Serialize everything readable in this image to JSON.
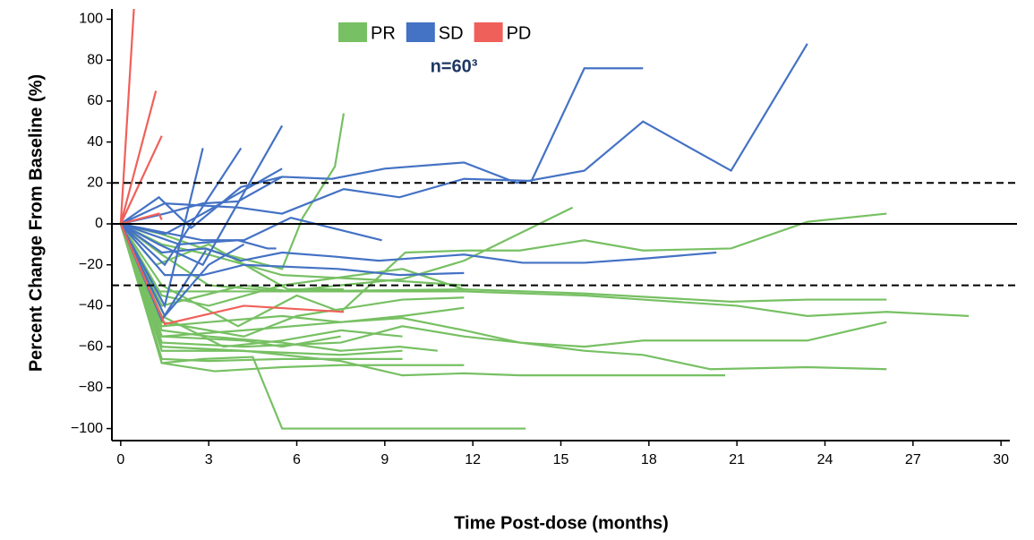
{
  "chart_data": {
    "type": "spider",
    "xlabel": "Time Post-dose (months)",
    "ylabel": "Percent Change From Baseline (%)",
    "annotation": "n=60³",
    "legend": "top-center",
    "xlim": [
      -0.3,
      30.3
    ],
    "xticks": [
      0,
      3,
      6,
      9,
      12,
      15,
      18,
      21,
      24,
      27,
      30
    ],
    "ylim": [
      -105,
      105
    ],
    "yticks": [
      {
        "value": -100,
        "label": "−100"
      },
      {
        "value": -80,
        "label": "−80"
      },
      {
        "value": -60,
        "label": "−60"
      },
      {
        "value": -40,
        "label": "−40"
      },
      {
        "value": -20,
        "label": "−20"
      },
      0,
      20,
      40,
      60,
      80,
      100
    ],
    "hlines": [
      {
        "value": 20,
        "style": "dashed"
      },
      {
        "value": 0,
        "style": "solid"
      },
      {
        "value": -30,
        "style": "dashed"
      }
    ],
    "series": [
      {
        "name": "PR",
        "color": "#77c063",
        "lines": [
          {
            "x": [
              0,
              1.4,
              2.8,
              5.5,
              6.2,
              7.3,
              7.6
            ],
            "values": [
              0,
              -5,
              -12,
              -22,
              3,
              28,
              54
            ]
          },
          {
            "x": [
              0,
              1.4,
              2.8,
              4.5,
              5.5,
              7.6,
              13.8
            ],
            "values": [
              0,
              -68,
              -66,
              -65,
              -100,
              -100,
              -100
            ]
          },
          {
            "x": [
              0,
              1.4,
              3,
              5.5,
              7.5,
              9.6,
              11.7,
              15.4
            ],
            "values": [
              0,
              -15,
              -30,
              -33,
              -30,
              -27,
              -18,
              8
            ]
          },
          {
            "x": [
              0,
              1.4,
              4,
              6,
              7.5,
              9.7,
              11.8,
              13.6,
              15.8,
              17.8,
              20.8,
              23.4,
              26.1
            ],
            "values": [
              0,
              -30,
              -50,
              -35,
              -43,
              -14,
              -13,
              -13,
              -8,
              -13,
              -12,
              1,
              5
            ]
          },
          {
            "x": [
              0,
              1.3,
              4.2,
              7.5,
              11.7,
              15.8,
              17.8,
              21,
              23.4,
              26.1,
              28.9
            ],
            "values": [
              0,
              -33,
              -33,
              -33,
              -33,
              -35,
              -37,
              -40,
              -45,
              -43,
              -45
            ]
          },
          {
            "x": [
              0,
              1.4,
              4.2,
              5.8,
              11.7,
              15.8,
              20.8,
              23.4,
              26.1
            ],
            "values": [
              0,
              -40,
              -30,
              -33,
              -32,
              -34,
              -38,
              -37,
              -37
            ]
          },
          {
            "x": [
              0,
              1.4,
              4.2,
              7.5,
              9.6,
              11.7,
              13.6,
              15.8,
              17.8,
              20.8,
              23.4,
              26.1
            ],
            "values": [
              0,
              -55,
              -52,
              -48,
              -46,
              -52,
              -58,
              -60,
              -57,
              -57,
              -57,
              -48
            ]
          },
          {
            "x": [
              0,
              1.4,
              4.2,
              7.5,
              9.6,
              11.7,
              13.6,
              15.8,
              17.8,
              20.1,
              23.4,
              26.1
            ],
            "values": [
              0,
              -58,
              -60,
              -58,
              -50,
              -55,
              -58,
              -62,
              -64,
              -71,
              -70,
              -71
            ]
          },
          {
            "x": [
              0,
              1.4,
              4.2,
              7.5,
              9.6,
              11.7,
              13.6,
              17.8,
              20.6
            ],
            "values": [
              0,
              -60,
              -62,
              -67,
              -74,
              -73,
              -74,
              -74,
              -74
            ]
          },
          {
            "x": [
              0,
              1.4,
              3.2,
              5.5,
              7.5,
              9.6,
              11.7
            ],
            "values": [
              0,
              -68,
              -72,
              -70,
              -69,
              -69,
              -69
            ]
          },
          {
            "x": [
              0,
              1.4,
              3,
              5.5,
              9.6
            ],
            "values": [
              0,
              -66,
              -67,
              -66,
              -66
            ]
          },
          {
            "x": [
              0,
              1.4,
              3,
              5.5,
              7.5,
              9.5,
              10.8
            ],
            "values": [
              0,
              -52,
              -55,
              -58,
              -62,
              -60,
              -62
            ]
          },
          {
            "x": [
              0,
              1.4,
              3,
              5.5,
              7.5,
              9.6,
              11.7
            ],
            "values": [
              0,
              -50,
              -48,
              -45,
              -48,
              -45,
              -41
            ]
          },
          {
            "x": [
              0,
              1.4,
              3.5,
              5.5,
              7.5,
              9.6
            ],
            "values": [
              0,
              -45,
              -60,
              -57,
              -52,
              -55
            ]
          },
          {
            "x": [
              0,
              1.4,
              4,
              7.5,
              9.6
            ],
            "values": [
              0,
              -62,
              -62,
              -64,
              -62
            ]
          },
          {
            "x": [
              0,
              1.4,
              3,
              5.5,
              9.6,
              11.7
            ],
            "values": [
              0,
              -35,
              -40,
              -30,
              -22,
              -32
            ]
          },
          {
            "x": [
              0,
              1.4,
              3,
              5.5,
              9.6,
              11.7
            ],
            "values": [
              0,
              -10,
              -15,
              -25,
              -28,
              -30
            ]
          },
          {
            "x": [
              0,
              1.2,
              3,
              5.7,
              7.6
            ],
            "values": [
              0,
              -20,
              -10,
              -32,
              -32
            ]
          },
          {
            "x": [
              0,
              1.4,
              4.2,
              5.5,
              7.5
            ],
            "values": [
              0,
              -55,
              -57,
              -60,
              -55
            ]
          },
          {
            "x": [
              0,
              1.4,
              4.2,
              6,
              9.6,
              11.7
            ],
            "values": [
              0,
              -48,
              -55,
              -45,
              -37,
              -36
            ]
          }
        ]
      },
      {
        "name": "SD",
        "color": "#4472c4",
        "lines": [
          {
            "x": [
              0,
              1.5,
              2.8,
              4,
              5.5,
              7.2,
              9,
              11.7,
              13.5,
              15.8,
              17.8,
              20.8,
              23.4
            ],
            "values": [
              0,
              5,
              10,
              11,
              23,
              22,
              27,
              30,
              20,
              26,
              50,
              26,
              88
            ]
          },
          {
            "x": [
              0,
              1.5,
              4,
              5.5,
              7.6,
              9.5,
              11.7,
              14,
              15.8,
              17.8
            ],
            "values": [
              0,
              10,
              8,
              5,
              17,
              13,
              22,
              21,
              76,
              76
            ]
          },
          {
            "x": [
              0,
              1.5,
              2.8,
              5.5
            ],
            "values": [
              0,
              -5,
              5,
              27
            ]
          },
          {
            "x": [
              0,
              1.5,
              2.8
            ],
            "values": [
              0,
              -40,
              37
            ]
          },
          {
            "x": [
              0,
              1.5,
              4.1
            ],
            "values": [
              0,
              -20,
              37
            ]
          },
          {
            "x": [
              0,
              1.3,
              2.8,
              5.5
            ],
            "values": [
              0,
              -10,
              -20,
              48
            ]
          },
          {
            "x": [
              0,
              2,
              4,
              5,
              5.3
            ],
            "values": [
              0,
              -10,
              -8,
              -12,
              -12
            ]
          },
          {
            "x": [
              0,
              1.4,
              2.9,
              4.1,
              5.5,
              7.3,
              8.8,
              11.7,
              13.7,
              15.8,
              17.8,
              20.3
            ],
            "values": [
              0,
              -14,
              -12,
              -18,
              -14,
              -16,
              -18,
              -15,
              -19,
              -19,
              -17,
              -14
            ]
          },
          {
            "x": [
              0,
              1.5,
              2.8,
              4.2,
              7.4,
              9.5,
              11.7
            ],
            "values": [
              0,
              -25,
              -25,
              -20,
              -22,
              -25,
              -24
            ]
          },
          {
            "x": [
              0,
              1.5,
              3,
              4.2
            ],
            "values": [
              0,
              -45,
              -20,
              -10
            ]
          },
          {
            "x": [
              0,
              2.8,
              4.2,
              5.8,
              8.9
            ],
            "values": [
              0,
              -8,
              -8,
              3,
              -8
            ]
          },
          {
            "x": [
              0,
              1.4,
              2.9
            ],
            "values": [
              0,
              -47,
              -13
            ]
          },
          {
            "x": [
              0,
              1.3,
              2.4,
              4.1,
              5.5
            ],
            "values": [
              0,
              13,
              -2,
              18,
              23
            ]
          }
        ]
      },
      {
        "name": "PD",
        "color": "#f0605a",
        "lines": [
          {
            "x": [
              0,
              0.45
            ],
            "values": [
              0,
              105
            ]
          },
          {
            "x": [
              0,
              1.2
            ],
            "values": [
              0,
              65
            ]
          },
          {
            "x": [
              0,
              1.4
            ],
            "values": [
              0,
              43
            ]
          },
          {
            "x": [
              0,
              1.3,
              1.4
            ],
            "values": [
              0,
              5,
              2
            ]
          },
          {
            "x": [
              0,
              1.5,
              4.2,
              7.6
            ],
            "values": [
              0,
              -49,
              -40,
              -43
            ]
          }
        ]
      }
    ]
  }
}
